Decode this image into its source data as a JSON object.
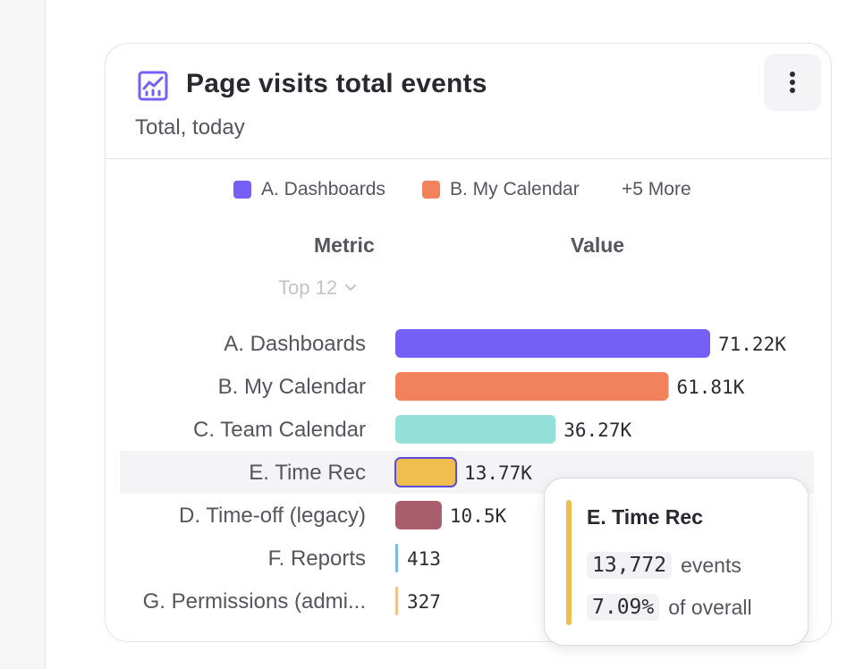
{
  "card": {
    "title": "Page visits total events",
    "subtitle": "Total, today",
    "title_icon": "line-chart-icon",
    "menu_icon": "more-vertical-icon"
  },
  "legend": {
    "items": [
      {
        "label": "A. Dashboards",
        "color": "#7460f7"
      },
      {
        "label": "B. My Calendar",
        "color": "#f1825c"
      }
    ],
    "more_label": "+5 More"
  },
  "table": {
    "metric_header": "Metric",
    "value_header": "Value",
    "top_select": "Top 12",
    "top_select_icon": "chevron-down-icon"
  },
  "chart_data": {
    "type": "bar",
    "orientation": "horizontal",
    "categories": [
      "A. Dashboards",
      "B. My Calendar",
      "C. Team Calendar",
      "E. Time Rec",
      "D. Time-off (legacy)",
      "F. Reports",
      "G. Permissions (admi..."
    ],
    "values": [
      71220,
      61810,
      36270,
      13770,
      10500,
      413,
      327
    ],
    "value_labels": [
      "71.22K",
      "61.81K",
      "36.27K",
      "13.77K",
      "10.5K",
      "413",
      "327"
    ],
    "colors": [
      "#7460f7",
      "#f1825c",
      "#93e0d8",
      "#f0be4f",
      "#a85d6d",
      "#7fb6ea",
      "#f2bf8d"
    ],
    "highlighted": "E. Time Rec",
    "xlim": [
      0,
      71220
    ]
  },
  "tooltip": {
    "title": "E. Time Rec",
    "value": "13,772",
    "value_unit": "events",
    "share": "7.09%",
    "share_label": "of overall",
    "color": "#f0be4f"
  }
}
